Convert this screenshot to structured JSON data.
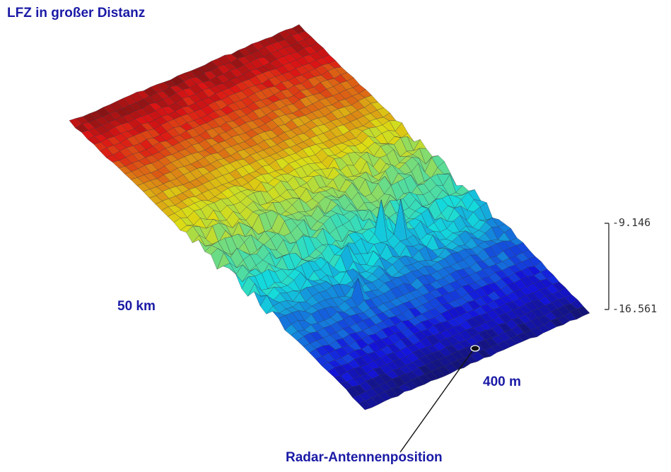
{
  "title": "LFZ in großer Distanz",
  "colors": {
    "text": "#1a1aa6",
    "axis": "#222222"
  },
  "chart_data": {
    "type": "surface",
    "title": "LFZ in großer Distanz",
    "x_extent_label": "50 km",
    "y_extent_label": "400 m",
    "zlim": [
      -16.561,
      -9.146
    ],
    "zaxis_ticks": [
      "-9.146",
      "-16.561"
    ],
    "colormap": "jet",
    "annotation": "Radar-Antennenposition"
  }
}
